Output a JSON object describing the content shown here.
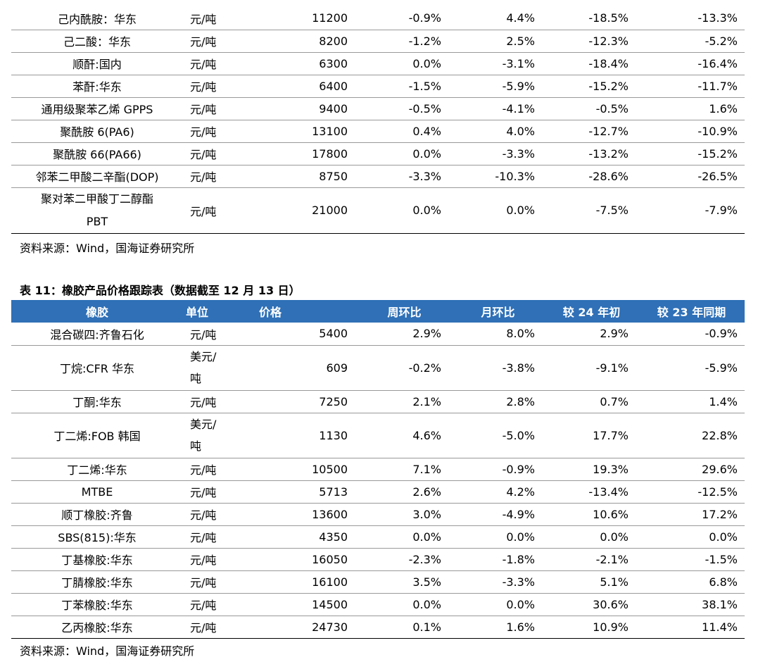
{
  "top_table": {
    "rows": [
      {
        "name": "己内酰胺：华东",
        "unit": "元/吨",
        "price": "11200",
        "week": "-0.9%",
        "month": "4.4%",
        "ytd": "-18.5%",
        "yoy": "-13.3%"
      },
      {
        "name": "己二酸：华东",
        "unit": "元/吨",
        "price": "8200",
        "week": "-1.2%",
        "month": "2.5%",
        "ytd": "-12.3%",
        "yoy": "-5.2%"
      },
      {
        "name": "顺酐:国内",
        "unit": "元/吨",
        "price": "6300",
        "week": "0.0%",
        "month": "-3.1%",
        "ytd": "-18.4%",
        "yoy": "-16.4%"
      },
      {
        "name": "苯酐:华东",
        "unit": "元/吨",
        "price": "6400",
        "week": "-1.5%",
        "month": "-5.9%",
        "ytd": "-15.2%",
        "yoy": "-11.7%"
      },
      {
        "name": "通用级聚苯乙烯 GPPS",
        "unit": "元/吨",
        "price": "9400",
        "week": "-0.5%",
        "month": "-4.1%",
        "ytd": "-0.5%",
        "yoy": "1.6%"
      },
      {
        "name": "聚酰胺 6(PA6)",
        "unit": "元/吨",
        "price": "13100",
        "week": "0.4%",
        "month": "4.0%",
        "ytd": "-12.7%",
        "yoy": "-10.9%"
      },
      {
        "name": "聚酰胺 66(PA66)",
        "unit": "元/吨",
        "price": "17800",
        "week": "0.0%",
        "month": "-3.3%",
        "ytd": "-13.2%",
        "yoy": "-15.2%"
      },
      {
        "name": "邻苯二甲酸二辛酯(DOP)",
        "unit": "元/吨",
        "price": "8750",
        "week": "-3.3%",
        "month": "-10.3%",
        "ytd": "-28.6%",
        "yoy": "-26.5%"
      },
      {
        "name_line1": "聚对苯二甲酸丁二醇酯",
        "name_line2": "PBT",
        "unit": "元/吨",
        "price": "21000",
        "week": "0.0%",
        "month": "0.0%",
        "ytd": "-7.5%",
        "yoy": "-7.9%"
      }
    ],
    "source": "资料来源：Wind，国海证券研究所"
  },
  "rubber_table": {
    "caption": "表 11：橡胶产品价格跟踪表（数据截至 12 月 13 日）",
    "headers": [
      "橡胶",
      "单位",
      "价格",
      "周环比",
      "月环比",
      "较 24 年初",
      "较 23 年同期"
    ],
    "header_color": "#2f70b7",
    "rows": [
      {
        "name": "混合碳四:齐鲁石化",
        "unit": "元/吨",
        "price": "5400",
        "week": "2.9%",
        "month": "8.0%",
        "ytd": "2.9%",
        "yoy": "-0.9%"
      },
      {
        "name": "丁烷:CFR 华东",
        "unit_line1": "美元/",
        "unit_line2": "吨",
        "price": "609",
        "week": "-0.2%",
        "month": "-3.8%",
        "ytd": "-9.1%",
        "yoy": "-5.9%"
      },
      {
        "name": "丁酮:华东",
        "unit": "元/吨",
        "price": "7250",
        "week": "2.1%",
        "month": "2.8%",
        "ytd": "0.7%",
        "yoy": "1.4%"
      },
      {
        "name": "丁二烯:FOB 韩国",
        "unit_line1": "美元/",
        "unit_line2": "吨",
        "price": "1130",
        "week": "4.6%",
        "month": "-5.0%",
        "ytd": "17.7%",
        "yoy": "22.8%"
      },
      {
        "name": "丁二烯:华东",
        "unit": "元/吨",
        "price": "10500",
        "week": "7.1%",
        "month": "-0.9%",
        "ytd": "19.3%",
        "yoy": "29.6%"
      },
      {
        "name": "MTBE",
        "unit": "元/吨",
        "price": "5713",
        "week": "2.6%",
        "month": "4.2%",
        "ytd": "-13.4%",
        "yoy": "-12.5%"
      },
      {
        "name": "顺丁橡胶:齐鲁",
        "unit": "元/吨",
        "price": "13600",
        "week": "3.0%",
        "month": "-4.9%",
        "ytd": "10.6%",
        "yoy": "17.2%"
      },
      {
        "name": "SBS(815):华东",
        "unit": "元/吨",
        "price": "4350",
        "week": "0.0%",
        "month": "0.0%",
        "ytd": "0.0%",
        "yoy": "0.0%"
      },
      {
        "name": "丁基橡胶:华东",
        "unit": "元/吨",
        "price": "16050",
        "week": "-2.3%",
        "month": "-1.8%",
        "ytd": "-2.1%",
        "yoy": "-1.5%"
      },
      {
        "name": "丁腈橡胶:华东",
        "unit": "元/吨",
        "price": "16100",
        "week": "3.5%",
        "month": "-3.3%",
        "ytd": "5.1%",
        "yoy": "6.8%"
      },
      {
        "name": "丁苯橡胶:华东",
        "unit": "元/吨",
        "price": "14500",
        "week": "0.0%",
        "month": "0.0%",
        "ytd": "30.6%",
        "yoy": "38.1%"
      },
      {
        "name": "乙丙橡胶:华东",
        "unit": "元/吨",
        "price": "24730",
        "week": "0.1%",
        "month": "1.6%",
        "ytd": "10.9%",
        "yoy": "11.4%"
      }
    ],
    "source": "资料来源：Wind，国海证券研究所"
  }
}
